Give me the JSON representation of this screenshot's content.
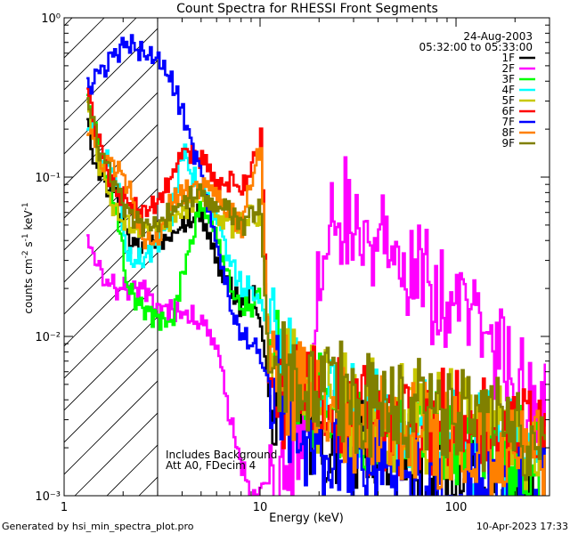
{
  "chart_data": {
    "type": "line",
    "title": "Count Spectra for RHESSI Front Segments",
    "xlabel": "Energy (keV)",
    "ylabel": "counts cm-2 s-1 keV-1",
    "x_scale": "log",
    "y_scale": "log",
    "xlim": [
      1,
      300
    ],
    "ylim": [
      0.001,
      1
    ],
    "x_ticks": [
      {
        "v": 10,
        "label": "10"
      },
      {
        "v": 100,
        "label": "100"
      }
    ],
    "y_ticks": [
      {
        "v": 1,
        "label": "10⁰"
      },
      {
        "v": 0.1,
        "label": "10⁻¹"
      },
      {
        "v": 0.01,
        "label": "10⁻²"
      },
      {
        "v": 0.001,
        "label": "10⁻³"
      }
    ],
    "x_tick_label_1": "1",
    "date": "24-Aug-2003",
    "time_range": "05:32:00 to 05:33:00",
    "annotation_line1": "Includes Background",
    "annotation_line2": "Att A0, FDecim 4",
    "attenuator_boundary_keV": 3,
    "footer_left": "Generated by hsi_min_spectra_plot.pro",
    "footer_right": "10-Apr-2023 17:33",
    "series": [
      {
        "name": "1F",
        "color": "#000000",
        "points": [
          [
            1.3,
            0.2
          ],
          [
            1.5,
            0.1
          ],
          [
            1.8,
            0.08
          ],
          [
            2.1,
            0.04
          ],
          [
            2.5,
            0.035
          ],
          [
            2.9,
            0.04
          ],
          [
            3.3,
            0.04
          ],
          [
            4,
            0.05
          ],
          [
            5,
            0.06
          ],
          [
            6,
            0.03
          ],
          [
            7,
            0.02
          ],
          [
            8,
            0.015
          ],
          [
            9,
            0.02
          ],
          [
            10,
            0.012
          ],
          [
            11,
            0.004
          ],
          [
            14,
            0.005
          ],
          [
            18,
            0.003
          ],
          [
            25,
            0.0025
          ],
          [
            35,
            0.0018
          ],
          [
            50,
            0.0015
          ],
          [
            70,
            0.0014
          ],
          [
            100,
            0.0012
          ],
          [
            150,
            0.0011
          ],
          [
            220,
            0.001
          ],
          [
            290,
            0.001
          ]
        ]
      },
      {
        "name": "2F",
        "color": "#ff00ff",
        "points": [
          [
            1.3,
            0.045
          ],
          [
            1.5,
            0.025
          ],
          [
            1.8,
            0.02
          ],
          [
            2.2,
            0.02
          ],
          [
            2.6,
            0.02
          ],
          [
            2.9,
            0.015
          ],
          [
            3.3,
            0.015
          ],
          [
            4,
            0.014
          ],
          [
            5,
            0.012
          ],
          [
            6,
            0.008
          ],
          [
            7,
            0.003
          ],
          [
            8,
            0.0015
          ],
          [
            9,
            0.001
          ],
          [
            12,
            0.001
          ],
          [
            17,
            0.0035
          ],
          [
            20,
            0.02
          ],
          [
            23,
            0.045
          ],
          [
            25,
            0.05
          ],
          [
            27,
            0.065
          ],
          [
            30,
            0.045
          ],
          [
            40,
            0.04
          ],
          [
            50,
            0.035
          ],
          [
            60,
            0.028
          ],
          [
            70,
            0.022
          ],
          [
            80,
            0.018
          ],
          [
            100,
            0.015
          ],
          [
            120,
            0.012
          ],
          [
            140,
            0.01
          ],
          [
            160,
            0.008
          ],
          [
            180,
            0.006
          ],
          [
            200,
            0.005
          ],
          [
            230,
            0.004
          ],
          [
            260,
            0.0033
          ],
          [
            290,
            0.003
          ]
        ]
      },
      {
        "name": "3F",
        "color": "#00ff00",
        "points": [
          [
            1.3,
            0.33
          ],
          [
            1.5,
            0.14
          ],
          [
            1.8,
            0.07
          ],
          [
            2.1,
            0.02
          ],
          [
            2.5,
            0.015
          ],
          [
            3,
            0.013
          ],
          [
            3.5,
            0.012
          ],
          [
            4,
            0.025
          ],
          [
            5,
            0.07
          ],
          [
            6,
            0.045
          ],
          [
            7,
            0.02
          ],
          [
            8,
            0.015
          ],
          [
            9,
            0.015
          ],
          [
            10,
            0.02
          ],
          [
            11,
            0.01
          ],
          [
            14,
            0.006
          ],
          [
            20,
            0.004
          ],
          [
            30,
            0.003
          ],
          [
            50,
            0.0025
          ],
          [
            70,
            0.0025
          ],
          [
            100,
            0.0025
          ],
          [
            150,
            0.002
          ],
          [
            200,
            0.0018
          ],
          [
            290,
            0.0017
          ]
        ]
      },
      {
        "name": "4F",
        "color": "#00ffff",
        "points": [
          [
            1.3,
            0.23
          ],
          [
            1.5,
            0.14
          ],
          [
            1.8,
            0.11
          ],
          [
            2.1,
            0.03
          ],
          [
            2.5,
            0.03
          ],
          [
            3,
            0.04
          ],
          [
            3.5,
            0.06
          ],
          [
            4,
            0.15
          ],
          [
            4.5,
            0.1
          ],
          [
            5,
            0.08
          ],
          [
            6,
            0.05
          ],
          [
            7,
            0.03
          ],
          [
            8,
            0.02
          ],
          [
            9,
            0.02
          ],
          [
            10,
            0.015
          ],
          [
            11,
            0.01
          ],
          [
            14,
            0.006
          ],
          [
            20,
            0.004
          ],
          [
            30,
            0.0035
          ],
          [
            50,
            0.003
          ],
          [
            70,
            0.0025
          ],
          [
            100,
            0.0025
          ],
          [
            150,
            0.002
          ],
          [
            200,
            0.0018
          ],
          [
            290,
            0.0015
          ]
        ]
      },
      {
        "name": "5F",
        "color": "#c8c800",
        "points": [
          [
            1.3,
            0.26
          ],
          [
            1.5,
            0.12
          ],
          [
            1.8,
            0.06
          ],
          [
            2.1,
            0.05
          ],
          [
            2.5,
            0.045
          ],
          [
            3,
            0.05
          ],
          [
            3.5,
            0.055
          ],
          [
            4,
            0.06
          ],
          [
            5,
            0.08
          ],
          [
            6,
            0.06
          ],
          [
            7,
            0.05
          ],
          [
            8,
            0.05
          ],
          [
            9,
            0.06
          ],
          [
            10,
            0.05
          ],
          [
            11,
            0.008
          ],
          [
            14,
            0.006
          ],
          [
            20,
            0.004
          ],
          [
            30,
            0.0035
          ],
          [
            50,
            0.003
          ],
          [
            70,
            0.003
          ],
          [
            100,
            0.0028
          ],
          [
            150,
            0.0025
          ],
          [
            200,
            0.0022
          ],
          [
            290,
            0.002
          ]
        ]
      },
      {
        "name": "6F",
        "color": "#ff0000",
        "points": [
          [
            1.3,
            0.36
          ],
          [
            1.5,
            0.16
          ],
          [
            1.8,
            0.08
          ],
          [
            2.1,
            0.07
          ],
          [
            2.5,
            0.06
          ],
          [
            3,
            0.07
          ],
          [
            3.5,
            0.1
          ],
          [
            4,
            0.15
          ],
          [
            5,
            0.13
          ],
          [
            6,
            0.08
          ],
          [
            7,
            0.1
          ],
          [
            8,
            0.08
          ],
          [
            9,
            0.12
          ],
          [
            10,
            0.18
          ],
          [
            11,
            0.005
          ],
          [
            14,
            0.004
          ],
          [
            20,
            0.004
          ],
          [
            30,
            0.003
          ],
          [
            50,
            0.003
          ],
          [
            70,
            0.003
          ],
          [
            100,
            0.0028
          ],
          [
            150,
            0.0025
          ],
          [
            200,
            0.0022
          ],
          [
            290,
            0.002
          ]
        ]
      },
      {
        "name": "7F",
        "color": "#0000ff",
        "points": [
          [
            1.3,
            0.38
          ],
          [
            1.5,
            0.45
          ],
          [
            1.8,
            0.6
          ],
          [
            2.1,
            0.7
          ],
          [
            2.5,
            0.6
          ],
          [
            3,
            0.55
          ],
          [
            3.5,
            0.4
          ],
          [
            4,
            0.25
          ],
          [
            5,
            0.1
          ],
          [
            6,
            0.04
          ],
          [
            7,
            0.015
          ],
          [
            8,
            0.01
          ],
          [
            9,
            0.009
          ],
          [
            10,
            0.008
          ],
          [
            11,
            0.006
          ],
          [
            14,
            0.003
          ],
          [
            20,
            0.002
          ],
          [
            30,
            0.0015
          ],
          [
            50,
            0.0012
          ],
          [
            70,
            0.0011
          ],
          [
            100,
            0.001
          ],
          [
            150,
            0.001
          ],
          [
            200,
            0.001
          ],
          [
            290,
            0.001
          ]
        ]
      },
      {
        "name": "8F",
        "color": "#ff8000",
        "points": [
          [
            1.3,
            0.22
          ],
          [
            1.5,
            0.13
          ],
          [
            1.8,
            0.12
          ],
          [
            2.1,
            0.09
          ],
          [
            2.5,
            0.04
          ],
          [
            3,
            0.04
          ],
          [
            3.5,
            0.07
          ],
          [
            4,
            0.08
          ],
          [
            5,
            0.09
          ],
          [
            6,
            0.07
          ],
          [
            7,
            0.06
          ],
          [
            8,
            0.05
          ],
          [
            9,
            0.1
          ],
          [
            10,
            0.15
          ],
          [
            11,
            0.006
          ],
          [
            14,
            0.005
          ],
          [
            20,
            0.004
          ],
          [
            30,
            0.003
          ],
          [
            50,
            0.0025
          ],
          [
            70,
            0.0025
          ],
          [
            100,
            0.0022
          ],
          [
            150,
            0.002
          ],
          [
            200,
            0.0018
          ],
          [
            290,
            0.0017
          ]
        ]
      },
      {
        "name": "9F",
        "color": "#808000",
        "points": [
          [
            1.3,
            0.3
          ],
          [
            1.5,
            0.15
          ],
          [
            1.8,
            0.09
          ],
          [
            2.1,
            0.06
          ],
          [
            2.5,
            0.05
          ],
          [
            3,
            0.05
          ],
          [
            3.5,
            0.06
          ],
          [
            4,
            0.07
          ],
          [
            5,
            0.08
          ],
          [
            6,
            0.07
          ],
          [
            7,
            0.06
          ],
          [
            8,
            0.05
          ],
          [
            9,
            0.06
          ],
          [
            10,
            0.06
          ],
          [
            11,
            0.006
          ],
          [
            14,
            0.006
          ],
          [
            20,
            0.0045
          ],
          [
            30,
            0.004
          ],
          [
            50,
            0.0035
          ],
          [
            70,
            0.0035
          ],
          [
            100,
            0.003
          ],
          [
            150,
            0.003
          ],
          [
            200,
            0.0028
          ],
          [
            290,
            0.0025
          ]
        ]
      }
    ]
  }
}
